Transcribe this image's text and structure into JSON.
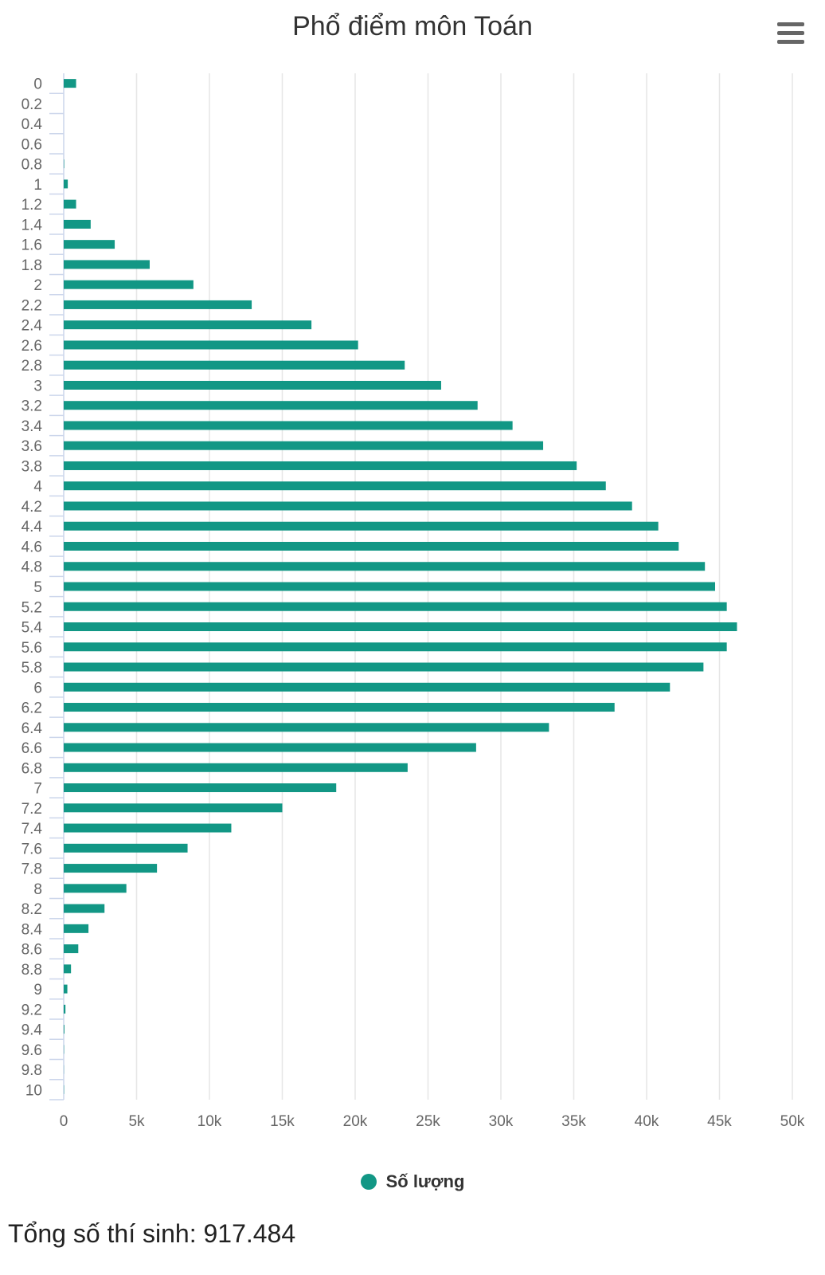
{
  "chart_data": {
    "type": "bar",
    "orientation": "horizontal",
    "title": "Phổ điểm môn Toán",
    "categories": [
      "0",
      "0.2",
      "0.4",
      "0.6",
      "0.8",
      "1",
      "1.2",
      "1.4",
      "1.6",
      "1.8",
      "2",
      "2.2",
      "2.4",
      "2.6",
      "2.8",
      "3",
      "3.2",
      "3.4",
      "3.6",
      "3.8",
      "4",
      "4.2",
      "4.4",
      "4.6",
      "4.8",
      "5",
      "5.2",
      "5.4",
      "5.6",
      "5.8",
      "6",
      "6.2",
      "6.4",
      "6.6",
      "6.8",
      "7",
      "7.2",
      "7.4",
      "7.6",
      "7.8",
      "8",
      "8.2",
      "8.4",
      "8.6",
      "8.8",
      "9",
      "9.2",
      "9.4",
      "9.6",
      "9.8",
      "10"
    ],
    "series": [
      {
        "name": "Số lượng",
        "color": "#129785",
        "values": [
          850,
          0,
          0,
          0,
          30,
          280,
          850,
          1850,
          3500,
          5900,
          8900,
          12900,
          17000,
          20200,
          23400,
          25900,
          28400,
          30800,
          32900,
          35200,
          37200,
          39000,
          40800,
          42200,
          44000,
          44700,
          45500,
          46200,
          45500,
          43900,
          41600,
          37800,
          33300,
          28300,
          23600,
          18700,
          15000,
          11500,
          8500,
          6400,
          4300,
          2800,
          1700,
          1000,
          500,
          250,
          120,
          50,
          20,
          10,
          20
        ]
      }
    ],
    "x_ticks": [
      "0",
      "5k",
      "10k",
      "15k",
      "20k",
      "25k",
      "30k",
      "35k",
      "40k",
      "45k",
      "50k"
    ],
    "xlim": [
      0,
      50000
    ],
    "grid": true,
    "legend_position": "bottom"
  },
  "legend_label": "Số lượng",
  "footer_text": "Tổng số thí sinh: 917.484",
  "menu_icon": "hamburger-menu-icon"
}
